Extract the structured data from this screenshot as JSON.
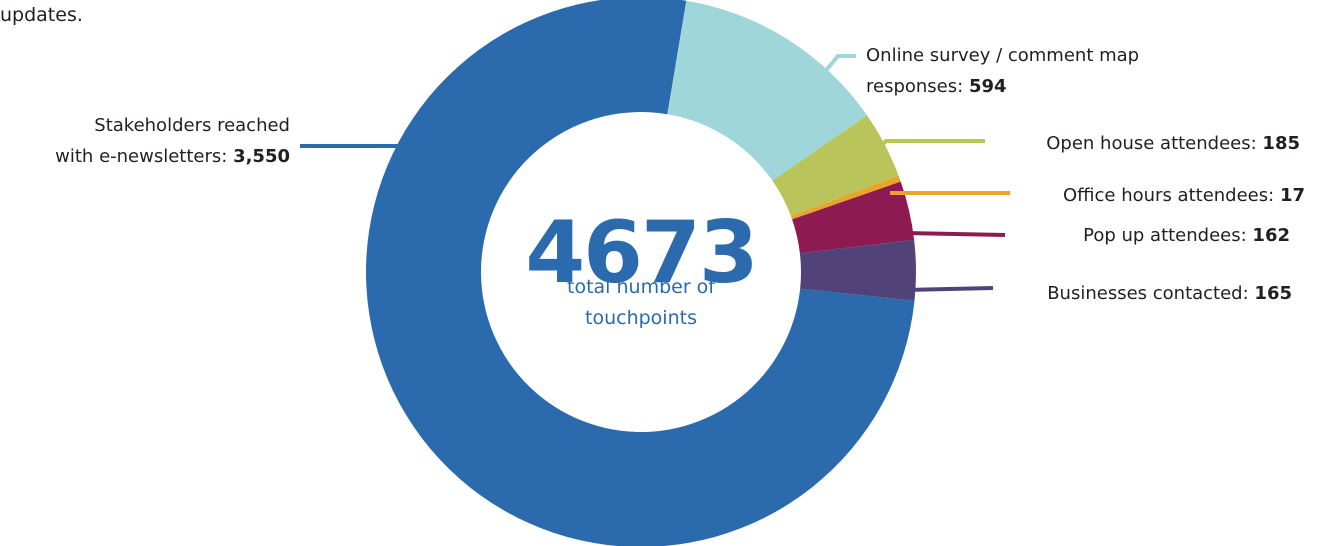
{
  "intro_fragment": "updates.",
  "chart_data": {
    "type": "donut",
    "categories": [
      "Stakeholders reached\nwith e-newsletters:",
      "Online survey / comment map\nresponses:",
      "Open house attendees:",
      "Office hours attendees:",
      "Pop up attendees:",
      "Businesses contacted:"
    ],
    "values": [
      3550,
      594,
      185,
      17,
      162,
      165
    ],
    "value_labels": [
      "3,550",
      "594",
      "185",
      "17",
      "162",
      "165"
    ],
    "colors": [
      "#2a6aad",
      "#9fd6d9",
      "#b9c45b",
      "#e8a52a",
      "#8e1a52",
      "#52427a"
    ],
    "total": 4673,
    "total_caption": "total number of\ntouchpoints"
  }
}
